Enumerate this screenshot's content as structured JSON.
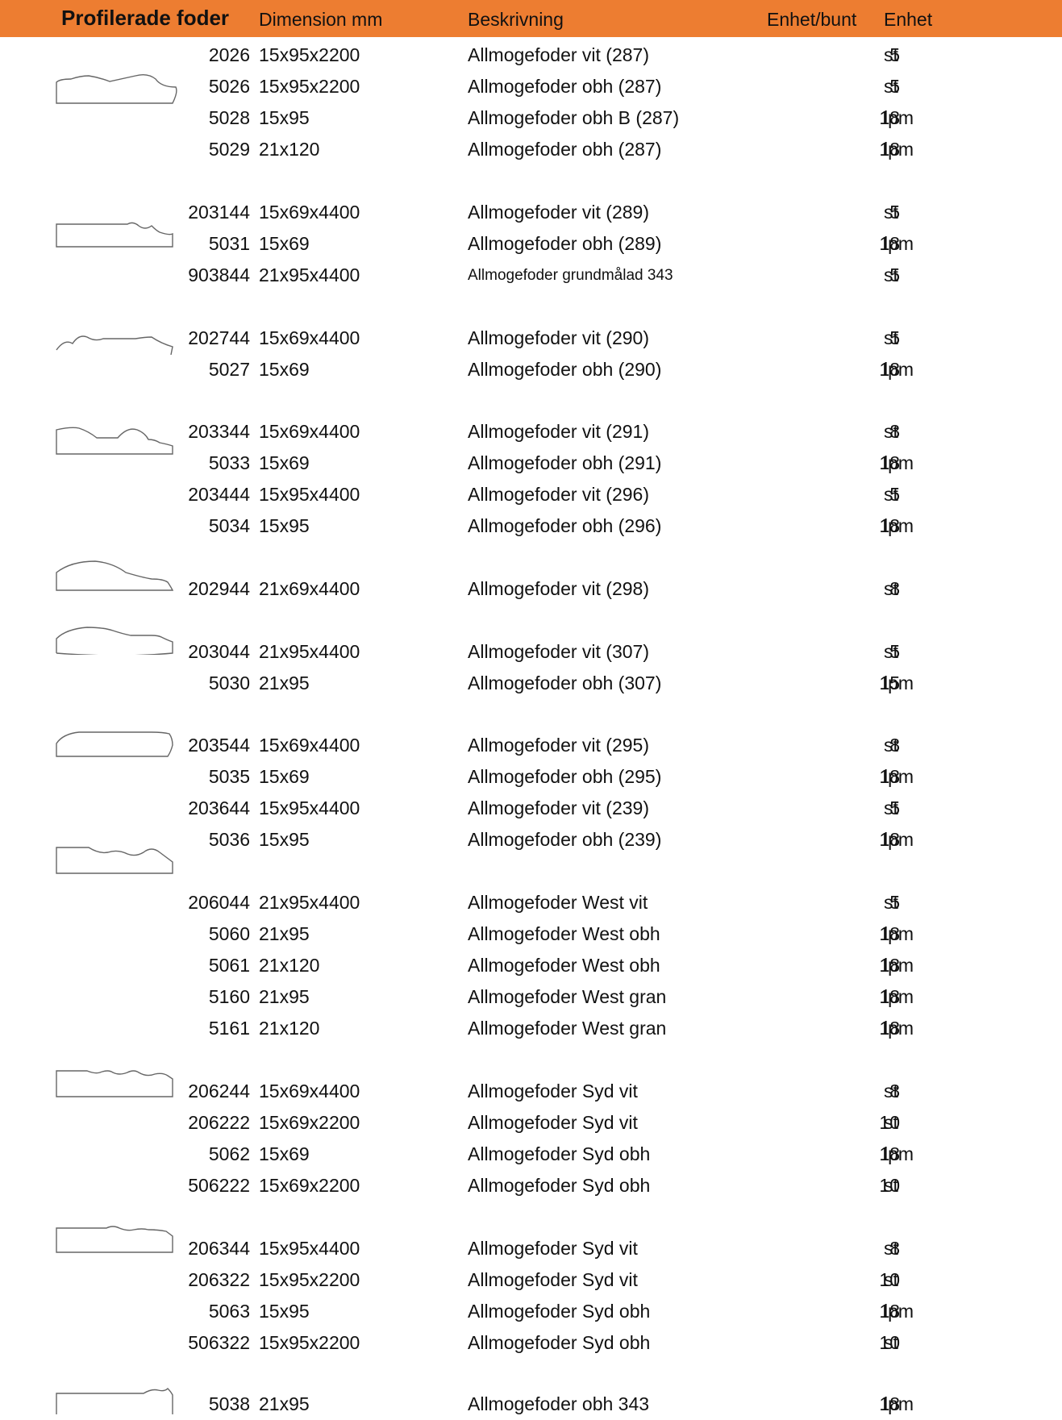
{
  "header": {
    "title": "Profilerade foder",
    "dimension": "Dimension mm",
    "description": "Beskrivning",
    "per_bundle": "Enhet/bunt",
    "unit": "Enhet"
  },
  "rows": [
    {
      "art": "2026",
      "dim": "15x95x2200",
      "desc": "Allmogefoder vit (287)",
      "qty": "5",
      "unit": "st"
    },
    {
      "art": "5026",
      "dim": "15x95x2200",
      "desc": "Allmogefoder obh (287)",
      "qty": "5",
      "unit": "st"
    },
    {
      "art": "5028",
      "dim": "15x95",
      "desc": "Allmogefoder obh B (287)",
      "qty": "18",
      "unit": "lpm"
    },
    {
      "art": "5029",
      "dim": "21x120",
      "desc": "Allmogefoder obh (287)",
      "qty": "18",
      "unit": "lpm"
    },
    {
      "art": "203144",
      "dim": "15x69x4400",
      "desc": "Allmogefoder vit (289)",
      "qty": "5",
      "unit": "st"
    },
    {
      "art": "5031",
      "dim": "15x69",
      "desc": "Allmogefoder obh (289)",
      "qty": "18",
      "unit": "lpm"
    },
    {
      "art": "903844",
      "dim": "21x95x4400",
      "desc": "Allmogefoder grundmålad 343",
      "qty": "5",
      "unit": "st"
    },
    {
      "art": "202744",
      "dim": "15x69x4400",
      "desc": "Allmogefoder vit (290)",
      "qty": "5",
      "unit": "st"
    },
    {
      "art": "5027",
      "dim": "15x69",
      "desc": "Allmogefoder obh (290)",
      "qty": "18",
      "unit": "lpm"
    },
    {
      "art": "203344",
      "dim": "15x69x4400",
      "desc": "Allmogefoder vit (291)",
      "qty": "8",
      "unit": "st"
    },
    {
      "art": "5033",
      "dim": "15x69",
      "desc": "Allmogefoder obh (291)",
      "qty": "18",
      "unit": "lpm"
    },
    {
      "art": "203444",
      "dim": "15x95x4400",
      "desc": "Allmogefoder vit (296)",
      "qty": "5",
      "unit": "st"
    },
    {
      "art": "5034",
      "dim": "15x95",
      "desc": "Allmogefoder obh (296)",
      "qty": "18",
      "unit": "lpm"
    },
    {
      "art": "202944",
      "dim": "21x69x4400",
      "desc": "Allmogefoder vit (298)",
      "qty": "8",
      "unit": "st"
    },
    {
      "art": "203044",
      "dim": "21x95x4400",
      "desc": "Allmogefoder vit (307)",
      "qty": "5",
      "unit": "st"
    },
    {
      "art": "5030",
      "dim": "21x95",
      "desc": "Allmogefoder obh (307)",
      "qty": "15",
      "unit": "lpm"
    },
    {
      "art": "203544",
      "dim": "15x69x4400",
      "desc": "Allmogefoder vit (295)",
      "qty": "8",
      "unit": "st"
    },
    {
      "art": "5035",
      "dim": "15x69",
      "desc": "Allmogefoder obh (295)",
      "qty": "18",
      "unit": "lpm"
    },
    {
      "art": "203644",
      "dim": "15x95x4400",
      "desc": "Allmogefoder vit (239)",
      "qty": "5",
      "unit": "st"
    },
    {
      "art": "5036",
      "dim": "15x95",
      "desc": "Allmogefoder obh (239)",
      "qty": "18",
      "unit": "lpm"
    },
    {
      "art": "206044",
      "dim": "21x95x4400",
      "desc": "Allmogefoder West vit",
      "qty": "5",
      "unit": "st"
    },
    {
      "art": "5060",
      "dim": "21x95",
      "desc": "Allmogefoder West obh",
      "qty": "18",
      "unit": "lpm"
    },
    {
      "art": "5061",
      "dim": "21x120",
      "desc": "Allmogefoder West obh",
      "qty": "18",
      "unit": "lpm"
    },
    {
      "art": "5160",
      "dim": "21x95",
      "desc": "Allmogefoder West gran",
      "qty": "18",
      "unit": "lpm"
    },
    {
      "art": "5161",
      "dim": "21x120",
      "desc": "Allmogefoder West gran",
      "qty": "18",
      "unit": "lpm"
    },
    {
      "art": "206244",
      "dim": "15x69x4400",
      "desc": "Allmogefoder Syd vit",
      "qty": "8",
      "unit": "st"
    },
    {
      "art": "206222",
      "dim": "15x69x2200",
      "desc": "Allmogefoder Syd vit",
      "qty": "10",
      "unit": "st"
    },
    {
      "art": "5062",
      "dim": "15x69",
      "desc": "Allmogefoder Syd obh",
      "qty": "18",
      "unit": "lpm"
    },
    {
      "art": "506222",
      "dim": "15x69x2200",
      "desc": "Allmogefoder Syd obh",
      "qty": "10",
      "unit": "st"
    },
    {
      "art": "206344",
      "dim": "15x95x4400",
      "desc": "Allmogefoder Syd vit",
      "qty": "8",
      "unit": "st"
    },
    {
      "art": "206322",
      "dim": "15x95x2200",
      "desc": "Allmogefoder Syd vit",
      "qty": "10",
      "unit": "st"
    },
    {
      "art": "5063",
      "dim": "15x95",
      "desc": "Allmogefoder Syd obh",
      "qty": "18",
      "unit": "lpm"
    },
    {
      "art": "506322",
      "dim": "15x95x2200",
      "desc": "Allmogefoder Syd obh",
      "qty": "10",
      "unit": "st"
    },
    {
      "art": "5038",
      "dim": "21x95",
      "desc": "Allmogefoder obh 343",
      "qty": "18",
      "unit": "lpm"
    }
  ]
}
